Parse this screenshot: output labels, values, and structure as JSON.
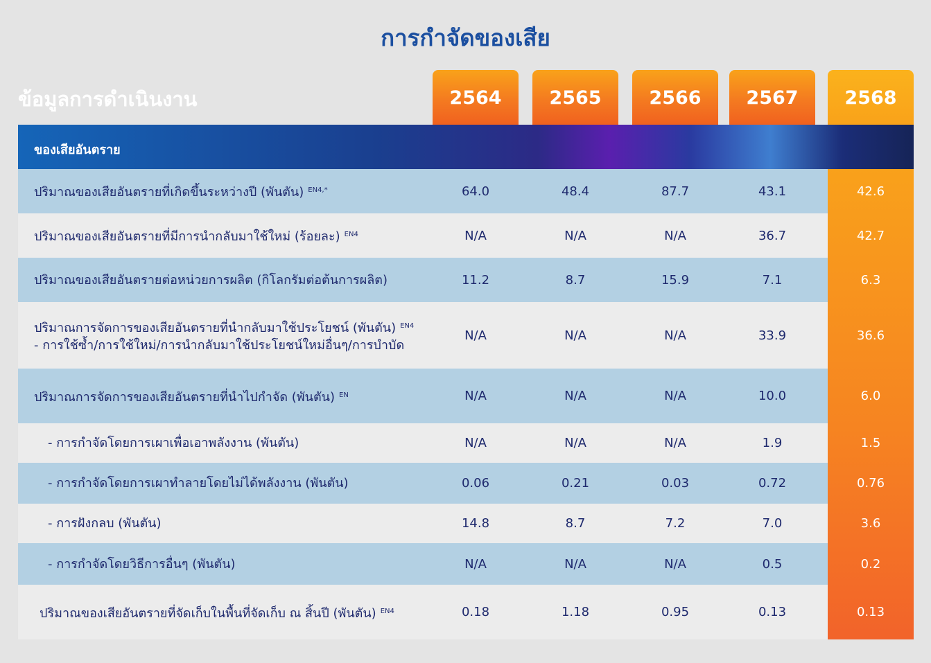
{
  "title": "การกำจัดของเสีย",
  "section_label": "ข้อมูลการดำเนินงาน",
  "years": [
    "2564",
    "2565",
    "2566",
    "2567",
    "2568"
  ],
  "category": "ของเสียอันตราย",
  "rows": [
    {
      "line1": "ปริมาณของเสียอันตรายที่เกิดขึ้นระหว่างปี (พันตัน)",
      "ref": "EN4,*",
      "line2": "",
      "values": [
        "64.0",
        "48.4",
        "87.7",
        "43.1",
        "42.6"
      ]
    },
    {
      "line1": "ปริมาณของเสียอันตรายที่มีการนำกลับมาใช้ใหม่ (ร้อยละ)",
      "ref": "EN4",
      "line2": "",
      "values": [
        "N/A",
        "N/A",
        "N/A",
        "36.7",
        "42.7"
      ]
    },
    {
      "line1": "ปริมาณของเสียอันตรายต่อหน่วยการผลิต (กิโลกรัมต่อต้นการผลิต)",
      "ref": "",
      "line2": "",
      "values": [
        "11.2",
        "8.7",
        "15.9",
        "7.1",
        "6.3"
      ]
    },
    {
      "line1": "ปริมาณการจัดการของเสียอันตรายที่นำกลับมาใช้ประโยชน์ (พันตัน)",
      "ref": "EN4",
      "line2": "- การใช้ซ้ำ/การใช้ใหม่/การนำกลับมาใช้ประโยชน์ใหม่อื่นๆ/การบำบัด",
      "values": [
        "N/A",
        "N/A",
        "N/A",
        "33.9",
        "36.6"
      ]
    },
    {
      "line1": "ปริมาณการจัดการของเสียอันตรายที่นำไปกำจัด (พันตัน)",
      "ref": "EN",
      "line2": "",
      "values": [
        "N/A",
        "N/A",
        "N/A",
        "10.0",
        "6.0"
      ]
    },
    {
      "line1": "- การกำจัดโดยการเผาเพื่อเอาพลังงาน (พันตัน)",
      "ref": "",
      "line2": "",
      "values": [
        "N/A",
        "N/A",
        "N/A",
        "1.9",
        "1.5"
      ]
    },
    {
      "line1": "- การกำจัดโดยการเผาทำลายโดยไม่ได้พลังงาน (พันตัน)",
      "ref": "",
      "line2": "",
      "values": [
        "0.06",
        "0.21",
        "0.03",
        "0.72",
        "0.76"
      ]
    },
    {
      "line1": "- การฝังกลบ (พันตัน)",
      "ref": "",
      "line2": "",
      "values": [
        "14.8",
        "8.7",
        "7.2",
        "7.0",
        "3.6"
      ]
    },
    {
      "line1": "- การกำจัดโดยวิธีการอื่นๆ (พันตัน)",
      "ref": "",
      "line2": "",
      "values": [
        "N/A",
        "N/A",
        "N/A",
        "0.5",
        "0.2"
      ]
    },
    {
      "line1": "ปริมาณของเสียอันตรายที่จัดเก็บในพื้นที่จัดเก็บ ณ สิ้นปี (พันตัน)",
      "ref": "EN4",
      "line2": "",
      "values": [
        "0.18",
        "1.18",
        "0.95",
        "0.13",
        "0.13"
      ]
    }
  ]
}
